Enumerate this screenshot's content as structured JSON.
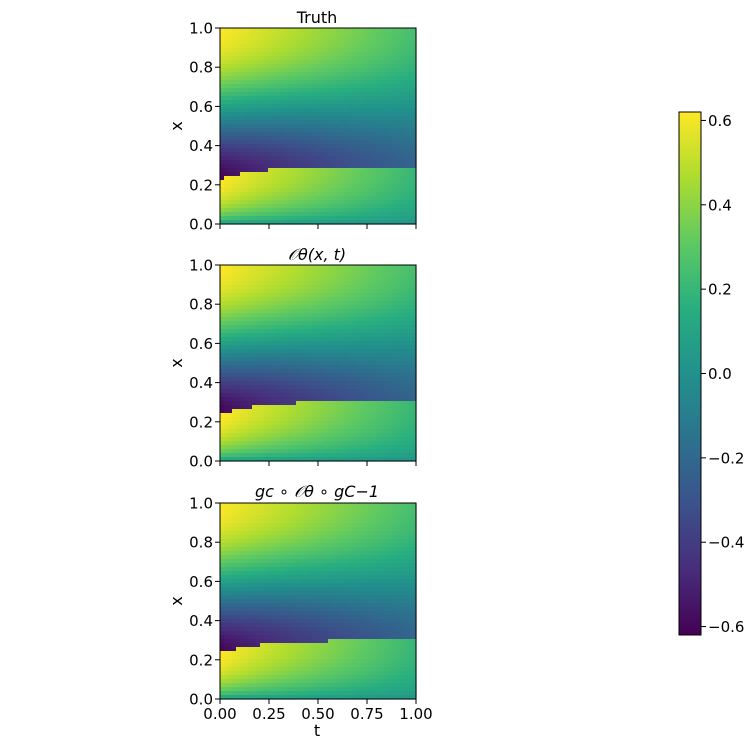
{
  "chart_data": [
    {
      "type": "heatmap",
      "title": "Truth",
      "xlabel": "",
      "ylabel": "x",
      "xlim": [
        0.0,
        1.0
      ],
      "ylim": [
        0.0,
        1.0
      ],
      "xticks": [
        0.0,
        0.25,
        0.5,
        0.75,
        1.0
      ],
      "xtick_labels": [],
      "yticks": [
        0.0,
        0.2,
        0.4,
        0.6,
        0.8,
        1.0
      ],
      "ytick_labels": [
        "0.0",
        "0.2",
        "0.4",
        "0.6",
        "0.8",
        "1.0"
      ],
      "variant": 0
    },
    {
      "type": "heatmap",
      "title": "𝒪θ(x, t)",
      "xlabel": "",
      "ylabel": "x",
      "xlim": [
        0.0,
        1.0
      ],
      "ylim": [
        0.0,
        1.0
      ],
      "xticks": [
        0.0,
        0.25,
        0.5,
        0.75,
        1.0
      ],
      "xtick_labels": [],
      "yticks": [
        0.0,
        0.2,
        0.4,
        0.6,
        0.8,
        1.0
      ],
      "ytick_labels": [
        "0.0",
        "0.2",
        "0.4",
        "0.6",
        "0.8",
        "1.0"
      ],
      "variant": 1
    },
    {
      "type": "heatmap",
      "title": "gc ∘ 𝒪θ ∘ gC−1",
      "xlabel": "t",
      "ylabel": "x",
      "xlim": [
        0.0,
        1.0
      ],
      "ylim": [
        0.0,
        1.0
      ],
      "xticks": [
        0.0,
        0.25,
        0.5,
        0.75,
        1.0
      ],
      "xtick_labels": [
        "0.00",
        "0.25",
        "0.50",
        "0.75",
        "1.00"
      ],
      "yticks": [
        0.0,
        0.2,
        0.4,
        0.6,
        0.8,
        1.0
      ],
      "ytick_labels": [
        "0.0",
        "0.2",
        "0.4",
        "0.6",
        "0.8",
        "1.0"
      ],
      "variant": 2
    }
  ],
  "colorbar": {
    "colormap": "viridis",
    "vmin": -0.62,
    "vmax": 0.62,
    "ticks": [
      -0.6,
      -0.4,
      -0.2,
      0.0,
      0.2,
      0.4,
      0.6
    ],
    "tick_labels": [
      "−0.6",
      "−0.4",
      "−0.2",
      "0.0",
      "0.2",
      "0.4",
      "0.6"
    ]
  }
}
